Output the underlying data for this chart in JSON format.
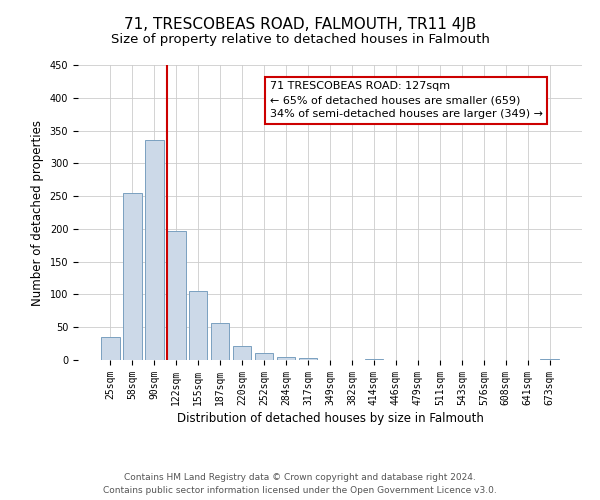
{
  "title": "71, TRESCOBEAS ROAD, FALMOUTH, TR11 4JB",
  "subtitle": "Size of property relative to detached houses in Falmouth",
  "xlabel": "Distribution of detached houses by size in Falmouth",
  "ylabel": "Number of detached properties",
  "bar_labels": [
    "25sqm",
    "58sqm",
    "90sqm",
    "122sqm",
    "155sqm",
    "187sqm",
    "220sqm",
    "252sqm",
    "284sqm",
    "317sqm",
    "349sqm",
    "382sqm",
    "414sqm",
    "446sqm",
    "479sqm",
    "511sqm",
    "543sqm",
    "576sqm",
    "608sqm",
    "641sqm",
    "673sqm"
  ],
  "bar_values": [
    35,
    255,
    335,
    197,
    106,
    57,
    21,
    11,
    5,
    3,
    0,
    0,
    2,
    0,
    0,
    0,
    0,
    0,
    0,
    0,
    2
  ],
  "bar_color": "#ccd9e8",
  "bar_edge_color": "#7aa0c0",
  "vline_index": 3,
  "vline_color": "#cc0000",
  "annotation_title": "71 TRESCOBEAS ROAD: 127sqm",
  "annotation_line1": "← 65% of detached houses are smaller (659)",
  "annotation_line2": "34% of semi-detached houses are larger (349) →",
  "annotation_box_color": "#ffffff",
  "annotation_box_edge": "#cc0000",
  "ylim": [
    0,
    450
  ],
  "yticks": [
    0,
    50,
    100,
    150,
    200,
    250,
    300,
    350,
    400,
    450
  ],
  "footer_line1": "Contains HM Land Registry data © Crown copyright and database right 2024.",
  "footer_line2": "Contains public sector information licensed under the Open Government Licence v3.0.",
  "bg_color": "#ffffff",
  "grid_color": "#cccccc",
  "title_fontsize": 11,
  "subtitle_fontsize": 9.5,
  "axis_label_fontsize": 8.5,
  "tick_fontsize": 7,
  "annotation_fontsize": 8,
  "footer_fontsize": 6.5
}
